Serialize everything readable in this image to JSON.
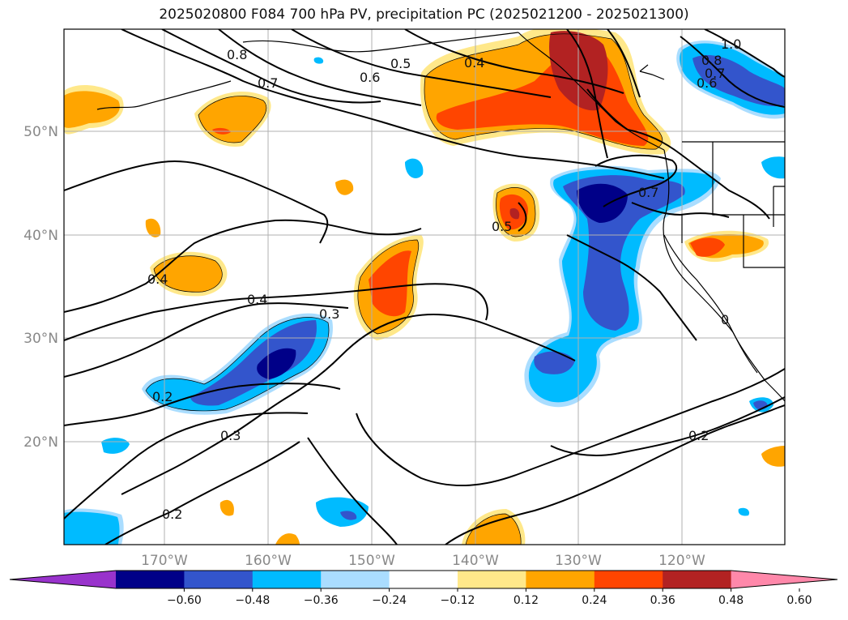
{
  "title": "2025020800 F084 700 hPa PV, precipitation PC (2025021200 - 2025021300)",
  "map": {
    "region": "North Pacific / western North America",
    "lat_labels": [
      "50°N",
      "40°N",
      "30°N",
      "20°N"
    ],
    "lon_labels": [
      "170°W",
      "160°W",
      "150°W",
      "140°W",
      "130°W",
      "120°W"
    ],
    "gridlines": true,
    "contour_color": "#000000",
    "contour_labels": [
      "0.8",
      "0.7",
      "0.5",
      "0.6",
      "0.4",
      "1.0",
      "0.8",
      "0.7",
      "0.6",
      "0.7",
      "0.5",
      "0.4",
      "0.4",
      "0.3",
      "0.2",
      "0.3",
      "0.2",
      "0.2",
      "0"
    ]
  },
  "colorbar": {
    "ticks": [
      "−0.60",
      "−0.48",
      "−0.36",
      "−0.24",
      "−0.12",
      "0.12",
      "0.24",
      "0.36",
      "0.48",
      "0.60"
    ],
    "colors": [
      "#9933cc",
      "#000088",
      "#3355cc",
      "#00bbff",
      "#aaddff",
      "#ffffff",
      "#ffe88a",
      "#ffa500",
      "#ff4500",
      "#b22222",
      "#ff88aa"
    ],
    "extend": "both"
  }
}
